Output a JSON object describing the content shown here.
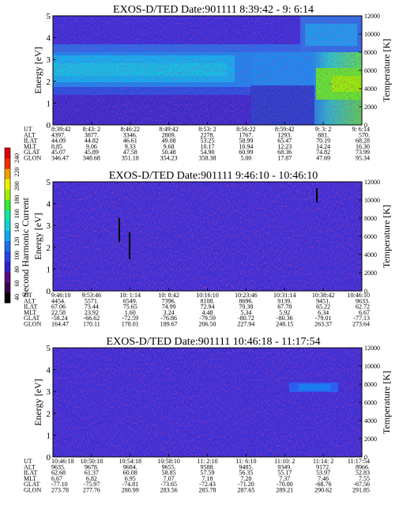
{
  "colors": {
    "scale": [
      "#000000",
      "#3a0050",
      "#5a0a78",
      "#3020c8",
      "#2a40e8",
      "#1c70f0",
      "#10a8f0",
      "#10d0d8",
      "#10e8a0",
      "#30f030",
      "#a0f000",
      "#f0f000",
      "#f0a000",
      "#f03000",
      "#e00000"
    ]
  },
  "colorbar": {
    "label": "Second Harmonic Current",
    "ticks": [
      "40",
      "60",
      "80",
      "100",
      "120",
      "140",
      "160",
      "180",
      "200",
      "220",
      "240"
    ]
  },
  "chart_data": [
    {
      "type": "heatmap",
      "title": "EXOS-D/TED    Date:901111  8:39:42 - 9: 6:14",
      "ylabel": "Energy [eV]",
      "y2label": "Temperature [K]",
      "ylim": [
        0,
        5
      ],
      "y2lim": [
        0,
        12000
      ],
      "yticks": [
        "0",
        "1",
        "2",
        "3",
        "4",
        "5"
      ],
      "y2ticks": [
        "0",
        "2000",
        "4000",
        "6000",
        "8000",
        "10000",
        "12000"
      ],
      "orbit_labels": [
        "UT",
        "ALT",
        "ILAT",
        "MLT",
        "GLAT",
        "GLON"
      ],
      "orbit": [
        [
          "8:39:42",
          "4397.",
          "44.09",
          "8.85",
          "45.07",
          "346.47"
        ],
        [
          "8:43: 2",
          "3877.",
          "44.82",
          "9.06",
          "45.89",
          "348.68"
        ],
        [
          "8:46:22",
          "3346.",
          "46.61",
          "9.33",
          "47.58",
          "351.18"
        ],
        [
          "8:49:42",
          "2809.",
          "49.08",
          "9.68",
          "50.48",
          "354.23"
        ],
        [
          "8:53: 2",
          "2278.",
          "53.25",
          "10.17",
          "54.90",
          "358.38"
        ],
        [
          "8:56:22",
          "1767.",
          "58.99",
          "10.94",
          "60.99",
          "5.00"
        ],
        [
          "8:59:42",
          "1293.",
          "65.47",
          "12.23",
          "68.36",
          "17.87"
        ],
        [
          "9: 3: 2",
          "881.",
          "70.19",
          "14.24",
          "74.82",
          "47.69"
        ],
        [
          "9: 6:14",
          "570.",
          "68.28",
          "16.30",
          "73.99",
          "95.34"
        ]
      ]
    },
    {
      "type": "heatmap",
      "title": "EXOS-D/TED    Date:901111  9:46:10 - 10:46:10",
      "ylabel": "Energy [eV]",
      "y2label": "Temperature [K]",
      "ylim": [
        0,
        5
      ],
      "y2lim": [
        0,
        12000
      ],
      "yticks": [
        "0",
        "1",
        "2",
        "3",
        "4",
        "5"
      ],
      "y2ticks": [
        "0",
        "2000",
        "4000",
        "6000",
        "8000",
        "10000",
        "12000"
      ],
      "orbit_labels": [
        "UT",
        "ALT",
        "ILAT",
        "MLT",
        "GLAT",
        "GLON"
      ],
      "orbit": [
        [
          "9:46:10",
          "4454.",
          "67.06",
          "22.58",
          "-58.24",
          "164.47"
        ],
        [
          "9:53:46",
          "5571.",
          "73.44",
          "23.92",
          "-66.62",
          "170.11"
        ],
        [
          "10: 1:14",
          "6549.",
          "75.65",
          "1.60",
          "-72.59",
          "178.01"
        ],
        [
          "10: 8:42",
          "7396.",
          "74.99",
          "3.24",
          "-76.86",
          "189.67"
        ],
        [
          "10:16:10",
          "8108.",
          "72.94",
          "4.48",
          "-79.59",
          "206.50"
        ],
        [
          "10:23:46",
          "8696.",
          "70.38",
          "5.34",
          "-80.72",
          "227.94"
        ],
        [
          "10:31:14",
          "9139.",
          "67.78",
          "5.92",
          "-80.36",
          "248.15"
        ],
        [
          "10:38:42",
          "9451.",
          "65.22",
          "6.34",
          "-79.01",
          "263.37"
        ],
        [
          "10:46:10",
          "9633.",
          "62.72",
          "6.67",
          "-77.13",
          "273.64"
        ]
      ]
    },
    {
      "type": "heatmap",
      "title": "EXOS-D/TED    Date:901111  10:46:18 - 11:17:54",
      "ylabel": "Energy [eV]",
      "y2label": "Temperature [K]",
      "ylim": [
        0,
        5
      ],
      "y2lim": [
        0,
        12000
      ],
      "yticks": [
        "0",
        "1",
        "2",
        "3",
        "4",
        "5"
      ],
      "y2ticks": [
        "0",
        "2000",
        "4000",
        "6000",
        "8000",
        "10000",
        "12000"
      ],
      "orbit_labels": [
        "UT",
        "ALT",
        "ILAT",
        "MLT",
        "GLAT",
        "GLON"
      ],
      "orbit": [
        [
          "10:46:18",
          "9635.",
          "62.68",
          "6.67",
          "-77.10",
          "273.78"
        ],
        [
          "10:50:18",
          "9678.",
          "61.37",
          "6.82",
          "-75.97",
          "277.76"
        ],
        [
          "10:54:18",
          "9684.",
          "60.08",
          "6.95",
          "-74.81",
          "280.99"
        ],
        [
          "10:58:10",
          "9655.",
          "58.85",
          "7.07",
          "-73.65",
          "283.56"
        ],
        [
          "11: 2:10",
          "9588.",
          "57.59",
          "7.18",
          "-72.43",
          "285.78"
        ],
        [
          "11: 6:10",
          "9485.",
          "56.35",
          "7.28",
          "-71.20",
          "287.65"
        ],
        [
          "11:10: 2",
          "9349.",
          "55.17",
          "7.37",
          "-70.00",
          "289.21"
        ],
        [
          "11:14: 2",
          "9172.",
          "53.97",
          "7.46",
          "-68.76",
          "290.62"
        ],
        [
          "11:17:54",
          "8966.",
          "52.83",
          "7.55",
          "-67.56",
          "291.85"
        ]
      ]
    }
  ]
}
